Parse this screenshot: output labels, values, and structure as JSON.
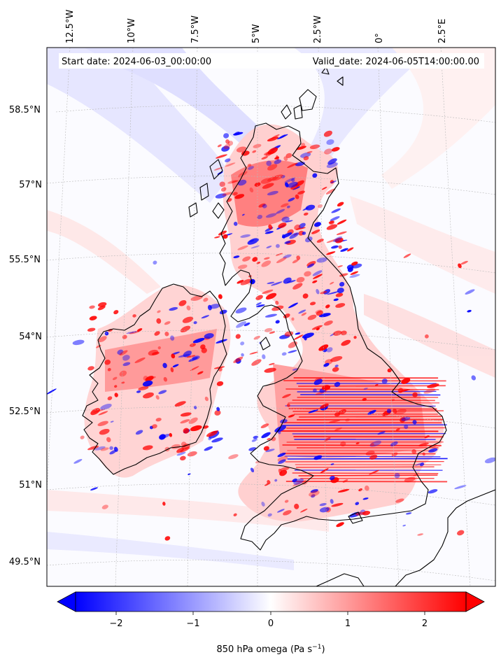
{
  "header": {
    "start_date": "Start date: 2024-06-03_00:00:00",
    "valid_date": "Valid_date: 2024-06-05T14:00:00.00"
  },
  "map": {
    "variable": "850 hPa omega",
    "colormap": "bwr",
    "lon_labels": [
      "12.5°W",
      "10°W",
      "7.5°W",
      "5°W",
      "2.5°W",
      "0°",
      "2.5°E"
    ],
    "lat_labels": [
      "58.5°N",
      "57°N",
      "55.5°N",
      "54°N",
      "52.5°N",
      "51°N",
      "49.5°N"
    ],
    "gridlines": true
  },
  "colorbar": {
    "ticks": [
      "−2",
      "−1",
      "0",
      "1",
      "2"
    ],
    "range": [
      -2.5,
      2.5
    ],
    "extend": "both",
    "colors": {
      "low": "#0000ff",
      "mid": "#ffffff",
      "high": "#ff0000"
    },
    "label_main": "850 hPa omega (Pa s",
    "label_sup": "−1",
    "label_end": ")"
  }
}
